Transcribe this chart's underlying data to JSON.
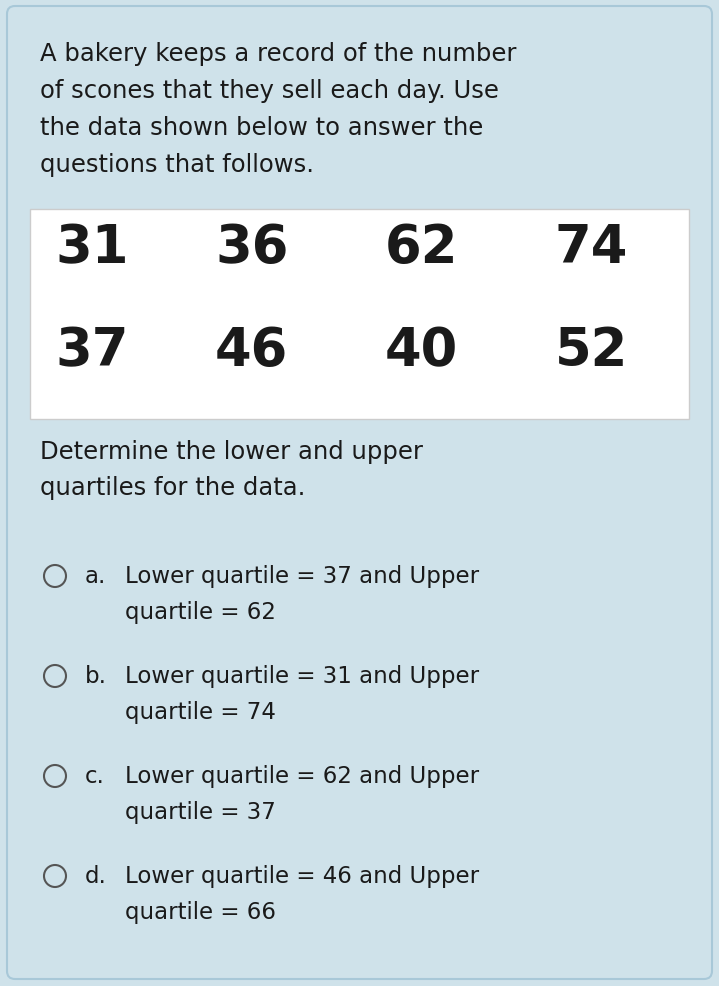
{
  "bg_color": "#cfe2ea",
  "text_color": "#1a1a1a",
  "intro_text_lines": [
    "A bakery keeps a record of the number",
    "of scones that they sell each day. Use",
    "the data shown below to answer the",
    "questions that follows."
  ],
  "data_values": [
    [
      "31",
      "36",
      "62",
      "74"
    ],
    [
      "37",
      "46",
      "40",
      "52"
    ]
  ],
  "question_text_lines": [
    "Determine the lower and upper",
    "quartiles for the data."
  ],
  "options": [
    {
      "label": "a.",
      "line1": "Lower quartile = 37 and Upper",
      "line2": "quartile = 62"
    },
    {
      "label": "b.",
      "line1": "Lower quartile = 31 and Upper",
      "line2": "quartile = 74"
    },
    {
      "label": "c.",
      "line1": "Lower quartile = 62 and Upper",
      "line2": "quartile = 37"
    },
    {
      "label": "d.",
      "line1": "Lower quartile = 46 and Upper",
      "line2": "quartile = 66"
    }
  ],
  "data_table_bg": "#ffffff",
  "table_border_color": "#cccccc",
  "circle_color": "#555555",
  "figsize": [
    7.19,
    9.87
  ],
  "dpi": 100
}
